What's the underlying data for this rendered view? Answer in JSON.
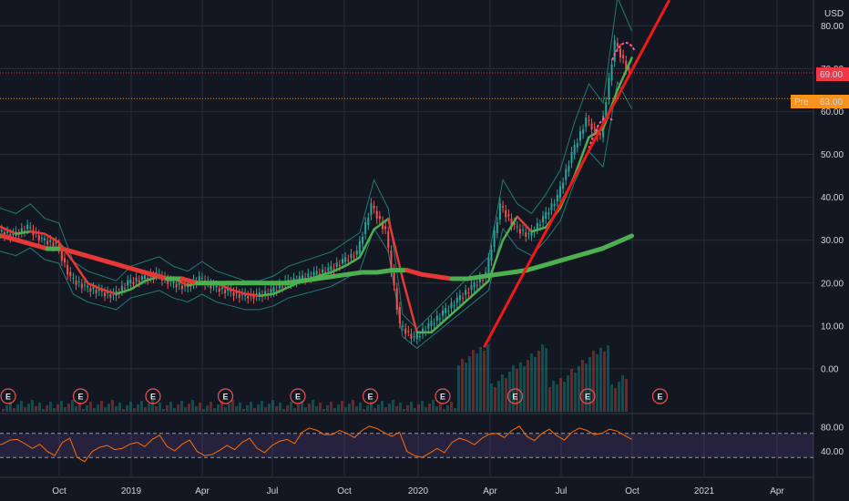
{
  "currency": "USD",
  "price_axis": {
    "ticks": [
      "80.00",
      "70.00",
      "60.00",
      "50.00",
      "40.00",
      "30.00",
      "20.00",
      "10.00",
      "0.00"
    ],
    "range": [
      -10,
      86
    ]
  },
  "rsi_axis": {
    "ticks": [
      "80.00",
      "40.00"
    ],
    "range": [
      0,
      100
    ],
    "upper_band": 70,
    "lower_band": 30
  },
  "time_axis": {
    "labels": [
      "Oct",
      "2019",
      "Apr",
      "Jul",
      "Oct",
      "2020",
      "Apr",
      "Jul",
      "Oct",
      "2021",
      "Apr"
    ]
  },
  "last_price": {
    "label": "69.00",
    "value": 69,
    "color": "#f23645"
  },
  "premarket": {
    "tag": "Pre",
    "label": "63.00",
    "value": 63,
    "color": "#f7931a"
  },
  "earnings_marker": "E",
  "earnings_count": 9,
  "colors": {
    "bg": "#131722",
    "grid": "#2a2e39",
    "bull": "#26a69a",
    "bear": "#ef5350",
    "ma_green": "#4caf50",
    "ma_red": "#e53935",
    "trend": "#f21818",
    "rsi": "#ff6d00",
    "rsi_zone": "#7e57c2",
    "bb": "#26a69a"
  },
  "chart_data": {
    "type": "line",
    "ylim": [
      -10,
      86
    ],
    "series": [
      {
        "values": [
          34,
          32,
          31,
          33,
          30,
          29,
          21,
          19,
          18,
          17,
          20,
          21,
          22,
          20,
          19,
          21,
          19,
          18,
          17,
          17,
          18,
          20,
          21,
          22,
          23,
          25,
          27,
          38,
          32,
          10,
          7,
          10,
          13,
          16,
          19,
          22,
          38,
          33,
          31,
          35,
          40,
          50,
          58,
          54,
          76,
          69
        ]
      },
      {
        "values": [
          31,
          31,
          30,
          29,
          28,
          28,
          27,
          26,
          25,
          24,
          23,
          22,
          21,
          21,
          20,
          20,
          20,
          20,
          20,
          20,
          20,
          20.5,
          21,
          21.5,
          22,
          22.5,
          22.5,
          23,
          23,
          22,
          21.5,
          21,
          21,
          21.5,
          22,
          22.5,
          23,
          24,
          25,
          26,
          27,
          28,
          29.5,
          31
        ]
      }
    ],
    "trendline": {
      "x": [
        "2020-03-23",
        "2020-11-15"
      ],
      "y": [
        5,
        86
      ]
    },
    "rsi": {
      "ylim": [
        0,
        100
      ],
      "values": [
        58,
        52,
        60,
        45,
        40,
        55,
        30,
        40,
        50,
        45,
        55,
        60,
        48,
        52,
        40,
        35,
        50,
        55,
        45,
        50,
        60,
        72,
        75,
        68,
        70,
        75,
        78,
        65,
        40,
        30,
        45,
        55,
        58,
        62,
        70,
        75,
        65,
        70,
        66,
        72,
        75,
        70,
        74,
        60
      ]
    }
  }
}
